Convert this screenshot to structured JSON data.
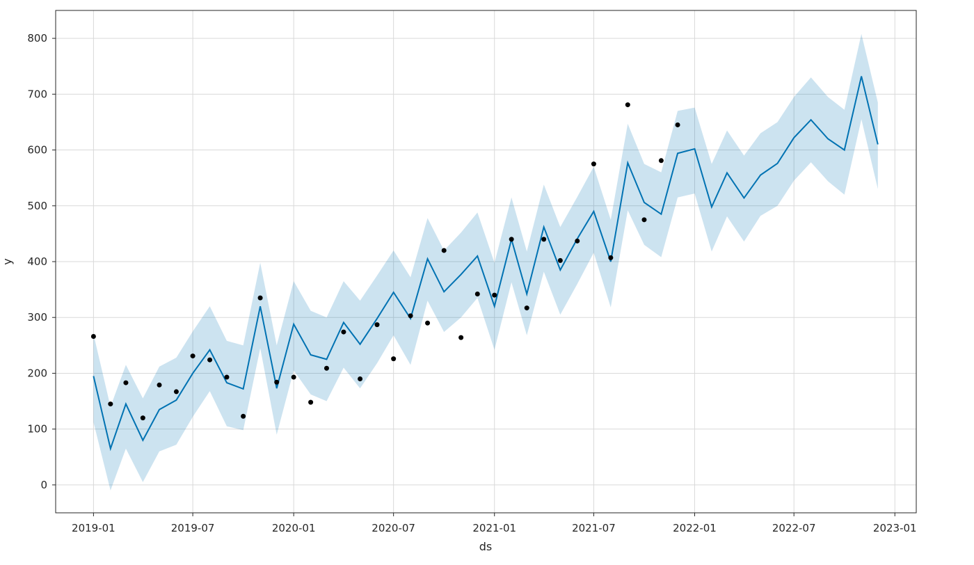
{
  "chart_data": {
    "type": "line",
    "xlabel": "ds",
    "ylabel": "y",
    "title": "",
    "x_range": [
      "2018-10-24",
      "2023-02-09"
    ],
    "ylim": [
      -50,
      850
    ],
    "grid": true,
    "x_ticks": [
      "2019-01-01",
      "2019-07-01",
      "2020-01-01",
      "2020-07-01",
      "2021-01-01",
      "2021-07-01",
      "2022-01-01",
      "2022-07-01",
      "2023-01-01"
    ],
    "x_tick_labels": [
      "2019-01",
      "2019-07",
      "2020-01",
      "2020-07",
      "2021-01",
      "2021-07",
      "2022-01",
      "2022-07",
      "2023-01"
    ],
    "y_ticks": [
      0,
      100,
      200,
      300,
      400,
      500,
      600,
      700,
      800
    ],
    "y_tick_labels": [
      "0",
      "100",
      "200",
      "300",
      "400",
      "500",
      "600",
      "700",
      "800"
    ],
    "colors": {
      "forecast_line": "#0072B2",
      "uncertainty_band": "#0072B2",
      "observed_points": "#000000"
    },
    "series": [
      {
        "kind": "observed",
        "dates": [
          "2019-01-01",
          "2019-02-01",
          "2019-03-01",
          "2019-04-01",
          "2019-05-01",
          "2019-06-01",
          "2019-07-01",
          "2019-08-01",
          "2019-09-01",
          "2019-10-01",
          "2019-11-01",
          "2019-12-01",
          "2020-01-01",
          "2020-02-01",
          "2020-03-01",
          "2020-04-01",
          "2020-05-01",
          "2020-06-01",
          "2020-07-01",
          "2020-08-01",
          "2020-09-01",
          "2020-10-01",
          "2020-11-01",
          "2020-12-01",
          "2021-01-01",
          "2021-02-01",
          "2021-03-01",
          "2021-04-01",
          "2021-05-01",
          "2021-06-01",
          "2021-07-01",
          "2021-08-01",
          "2021-09-01",
          "2021-10-01",
          "2021-11-01",
          "2021-12-01"
        ],
        "values": [
          266,
          145,
          183,
          120,
          179,
          167,
          231,
          224,
          193,
          123,
          335,
          184,
          193,
          148,
          209,
          274,
          190,
          287,
          226,
          303,
          290,
          420,
          264,
          342,
          340,
          440,
          317,
          440,
          402,
          437,
          575,
          407,
          681,
          475,
          581,
          645
        ]
      },
      {
        "kind": "forecast",
        "dates": [
          "2019-01-01",
          "2019-02-01",
          "2019-03-01",
          "2019-04-01",
          "2019-05-01",
          "2019-06-01",
          "2019-07-01",
          "2019-08-01",
          "2019-09-01",
          "2019-10-01",
          "2019-11-01",
          "2019-12-01",
          "2020-01-01",
          "2020-02-01",
          "2020-03-01",
          "2020-04-01",
          "2020-05-01",
          "2020-06-01",
          "2020-07-01",
          "2020-08-01",
          "2020-09-01",
          "2020-10-01",
          "2020-11-01",
          "2020-12-01",
          "2021-01-01",
          "2021-02-01",
          "2021-03-01",
          "2021-04-01",
          "2021-05-01",
          "2021-06-01",
          "2021-07-01",
          "2021-08-01",
          "2021-09-01",
          "2021-10-01",
          "2021-11-01",
          "2021-12-01",
          "2022-01-01",
          "2022-02-01",
          "2022-03-01",
          "2022-04-01",
          "2022-05-01",
          "2022-06-01",
          "2022-07-01",
          "2022-08-01",
          "2022-09-01",
          "2022-10-01",
          "2022-11-01",
          "2022-12-01"
        ],
        "values": [
          195,
          65,
          145,
          80,
          135,
          152,
          200,
          242,
          183,
          172,
          320,
          173,
          288,
          233,
          225,
          291,
          252,
          298,
          345,
          298,
          405,
          346,
          377,
          410,
          320,
          440,
          342,
          462,
          385,
          441,
          490,
          400,
          577,
          506,
          485,
          594,
          602,
          498,
          559,
          514,
          555,
          576,
          622,
          654,
          620,
          600,
          732,
          610
        ],
        "lower": [
          112,
          -10,
          65,
          5,
          60,
          72,
          122,
          168,
          105,
          98,
          245,
          90,
          205,
          162,
          150,
          210,
          173,
          218,
          268,
          215,
          330,
          274,
          300,
          335,
          242,
          363,
          268,
          382,
          305,
          360,
          416,
          318,
          492,
          430,
          408,
          515,
          522,
          418,
          481,
          436,
          482,
          500,
          545,
          578,
          544,
          520,
          655,
          530
        ],
        "upper": [
          270,
          140,
          215,
          155,
          212,
          228,
          275,
          320,
          258,
          250,
          398,
          250,
          365,
          312,
          300,
          365,
          330,
          375,
          420,
          372,
          478,
          420,
          452,
          488,
          398,
          515,
          418,
          538,
          462,
          516,
          570,
          475,
          647,
          575,
          560,
          670,
          676,
          575,
          635,
          590,
          630,
          650,
          695,
          730,
          695,
          672,
          808,
          685
        ]
      }
    ]
  }
}
